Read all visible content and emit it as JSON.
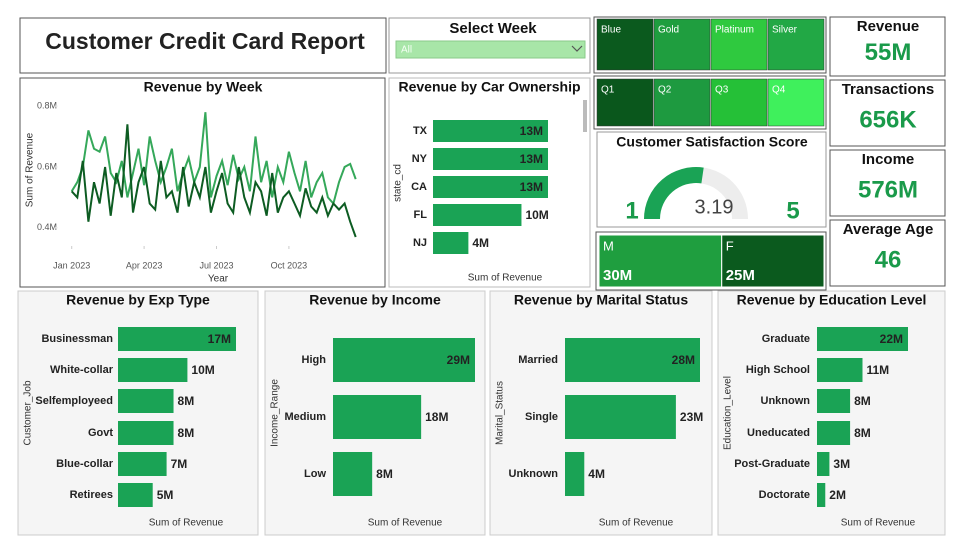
{
  "title": "Customer Credit Card Report",
  "slicer": {
    "label": "Select Week",
    "value": "All"
  },
  "card_types": {
    "labels": [
      "Blue",
      "Gold",
      "Platinum",
      "Silver"
    ],
    "colors": [
      "#0b5a1e",
      "#1f9e3f",
      "#2fc93f",
      "#22a845"
    ]
  },
  "quarters": {
    "labels": [
      "Q1",
      "Q2",
      "Q3",
      "Q4"
    ],
    "colors": [
      "#0a571c",
      "#1e9a40",
      "#25c037",
      "#3ff05c"
    ]
  },
  "kpis": [
    {
      "label": "Revenue",
      "value": "55M"
    },
    {
      "label": "Transactions",
      "value": "656K"
    },
    {
      "label": "Income",
      "value": "576M"
    },
    {
      "label": "Average Age",
      "value": "46"
    }
  ],
  "chart_data": [
    {
      "type": "line",
      "title": "Revenue by Week",
      "x_label": "Year",
      "y_label": "Sum of Revenue",
      "x": [
        1,
        2,
        3,
        4,
        5,
        6,
        7,
        8,
        9,
        10,
        11,
        12,
        13,
        14,
        15,
        16,
        17,
        18,
        19,
        20,
        21,
        22,
        23,
        24,
        25,
        26,
        27,
        28,
        29,
        30,
        31,
        32,
        33,
        34,
        35,
        36,
        37,
        38,
        39,
        40,
        41,
        42,
        43,
        44,
        45,
        46,
        47,
        48,
        49,
        50,
        51,
        52
      ],
      "series": [
        {
          "color": "#35a85a",
          "values": [
            0.52,
            0.55,
            0.6,
            0.72,
            0.66,
            0.65,
            0.7,
            0.58,
            0.55,
            0.62,
            0.5,
            0.58,
            0.66,
            0.54,
            0.7,
            0.62,
            0.55,
            0.6,
            0.66,
            0.52,
            0.58,
            0.63,
            0.55,
            0.6,
            0.78,
            0.5,
            0.57,
            0.62,
            0.54,
            0.64,
            0.56,
            0.6,
            0.52,
            0.7,
            0.55,
            0.62,
            0.5,
            0.6,
            0.55,
            0.65,
            0.58,
            0.52,
            0.62,
            0.5,
            0.55,
            0.58,
            0.5,
            0.48,
            0.55,
            0.6,
            0.61,
            0.56
          ]
        },
        {
          "color": "#0d5c22",
          "values": [
            0.52,
            0.5,
            0.62,
            0.42,
            0.55,
            0.48,
            0.6,
            0.44,
            0.58,
            0.5,
            0.74,
            0.45,
            0.55,
            0.6,
            0.48,
            0.46,
            0.62,
            0.5,
            0.52,
            0.45,
            0.6,
            0.47,
            0.55,
            0.5,
            0.6,
            0.45,
            0.52,
            0.58,
            0.48,
            0.45,
            0.6,
            0.5,
            0.45,
            0.55,
            0.52,
            0.44,
            0.58,
            0.45,
            0.5,
            0.52,
            0.48,
            0.44,
            0.53,
            0.47,
            0.45,
            0.5,
            0.44,
            0.48,
            0.46,
            0.48,
            0.42,
            0.37
          ]
        }
      ],
      "xlim": [
        -2,
        56
      ],
      "xticks": [
        {
          "value": 1,
          "label": "Jan 2023"
        },
        {
          "value": 14,
          "label": "Apr 2023"
        },
        {
          "value": 27,
          "label": "Jul 2023"
        },
        {
          "value": 40,
          "label": "Oct 2023"
        }
      ],
      "ylim": [
        0.36,
        0.82
      ],
      "yticks": [
        {
          "value": 0.4,
          "label": "0.4M"
        },
        {
          "value": 0.6,
          "label": "0.6M"
        },
        {
          "value": 0.8,
          "label": "0.8M"
        }
      ]
    },
    {
      "type": "hbar",
      "title": "Revenue by Car Ownership",
      "y_label": "state_cd",
      "x_label": "Sum of Revenue",
      "color": "#1aa355",
      "categories": [
        "TX",
        "NY",
        "CA",
        "FL",
        "NJ"
      ],
      "values": [
        13,
        13,
        13,
        10,
        4
      ],
      "value_labels": [
        "13M",
        "13M",
        "13M",
        "10M",
        "4M"
      ]
    },
    {
      "type": "gauge",
      "title": "Customer Satisfaction Score",
      "min": 1,
      "max": 5,
      "value": 3.19,
      "color": "#1aa355"
    },
    {
      "type": "treemap",
      "categories": [
        "M",
        "F"
      ],
      "values": [
        30,
        25
      ],
      "value_labels": [
        "30M",
        "25M"
      ],
      "colors": [
        "#1f9e3f",
        "#0b5a1e"
      ]
    },
    {
      "type": "hbar",
      "title": "Revenue by Exp Type",
      "y_label": "Customer_Job",
      "x_label": "Sum of Revenue",
      "color": "#1aa355",
      "categories": [
        "Businessman",
        "White-collar",
        "Selfemployeed",
        "Govt",
        "Blue-collar",
        "Retirees"
      ],
      "values": [
        17,
        10,
        8,
        8,
        7,
        5
      ],
      "value_labels": [
        "17M",
        "10M",
        "8M",
        "8M",
        "7M",
        "5M"
      ]
    },
    {
      "type": "hbar",
      "title": "Revenue by Income",
      "y_label": "Income_Range",
      "x_label": "Sum of Revenue",
      "color": "#1aa355",
      "categories": [
        "High",
        "Medium",
        "Low"
      ],
      "values": [
        29,
        18,
        8
      ],
      "value_labels": [
        "29M",
        "18M",
        "8M"
      ]
    },
    {
      "type": "hbar",
      "title": "Revenue by Marital Status",
      "y_label": "Marital_Status",
      "x_label": "Sum of Revenue",
      "color": "#1aa355",
      "categories": [
        "Married",
        "Single",
        "Unknown"
      ],
      "values": [
        28,
        23,
        4
      ],
      "value_labels": [
        "28M",
        "23M",
        "4M"
      ]
    },
    {
      "type": "hbar",
      "title": "Revenue by Education Level",
      "y_label": "Education_Level",
      "x_label": "Sum of Revenue",
      "color": "#1aa355",
      "categories": [
        "Graduate",
        "High School",
        "Unknown",
        "Uneducated",
        "Post-Graduate",
        "Doctorate"
      ],
      "values": [
        22,
        11,
        8,
        8,
        3,
        2
      ],
      "value_labels": [
        "22M",
        "11M",
        "8M",
        "8M",
        "3M",
        "2M"
      ]
    }
  ]
}
